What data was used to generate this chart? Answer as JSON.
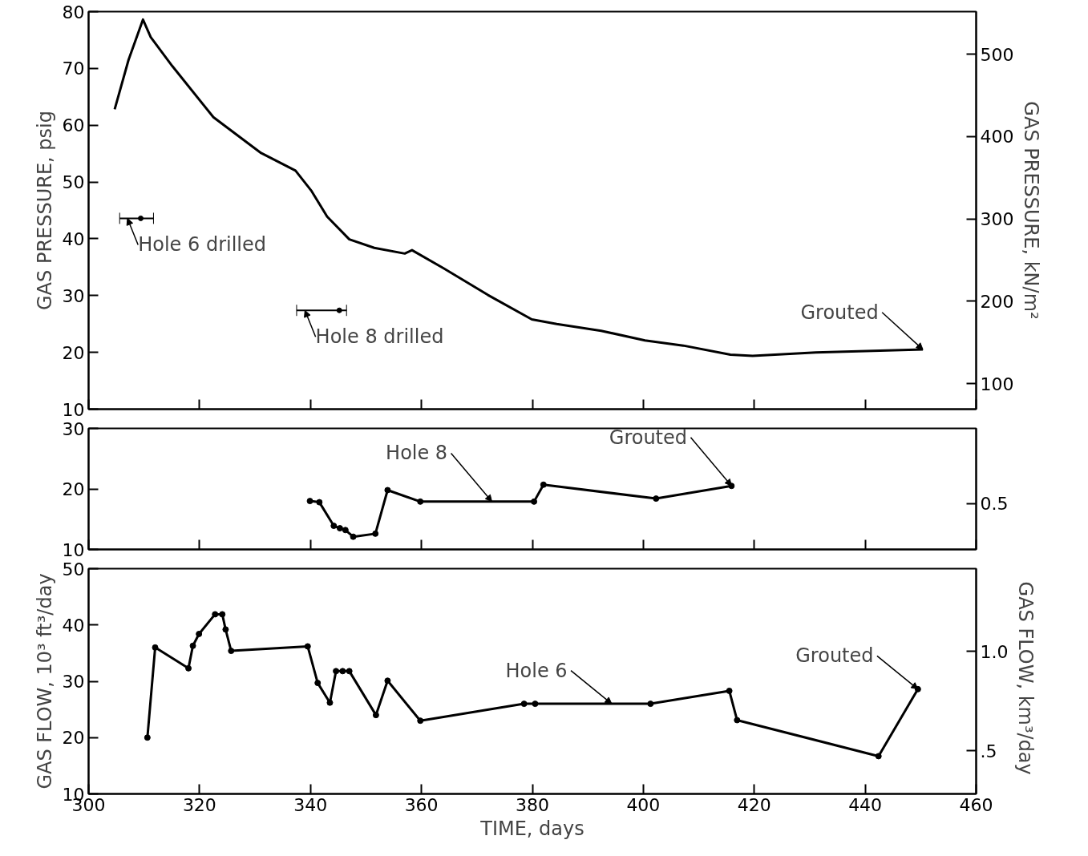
{
  "chart_data": [
    {
      "type": "line",
      "ylabel": "GAS PRESSURE, psig",
      "y2label": "GAS PRESSURE, kN/m²",
      "x": [
        304.7,
        307.2,
        309.8,
        311.2,
        315.1,
        322.5,
        331.1,
        337.3,
        340.2,
        343.0,
        347.0,
        351.5,
        357.0,
        358.3,
        364.0,
        372.0,
        379.9,
        384.4,
        392.4,
        400.3,
        407.2,
        415.7,
        419.7,
        431.1,
        450.4
      ],
      "series": [
        {
          "color": "#000000",
          "values": [
            62.8,
            71.5,
            78.6,
            75.5,
            70.4,
            61.4,
            55.1,
            52.0,
            48.4,
            43.9,
            39.9,
            38.4,
            37.4,
            38.0,
            34.8,
            30.1,
            25.8,
            25.0,
            23.8,
            22.1,
            21.2,
            19.6,
            19.4,
            20.0,
            20.5
          ]
        },
        {
          "type": "scatter",
          "color": "#000000",
          "x": [
            309.4,
            345.2
          ],
          "values": [
            43.6,
            27.4
          ],
          "xerrors": [
            [
              305.6,
              311.7
            ],
            [
              337.5,
              346.5
            ]
          ]
        }
      ],
      "xlim": [
        300,
        460
      ],
      "xticks": [
        {
          "value": 300,
          "label": null
        },
        {
          "value": 320,
          "label": null
        },
        {
          "value": 340,
          "label": null
        },
        {
          "value": 360,
          "label": null
        },
        {
          "value": 380,
          "label": null
        },
        {
          "value": 400,
          "label": null
        },
        {
          "value": 420,
          "label": null
        },
        {
          "value": 440,
          "label": null
        },
        {
          "value": 460,
          "label": null
        }
      ],
      "ylim": [
        10,
        80
      ],
      "yticks": [
        10,
        20,
        30,
        40,
        50,
        60,
        70,
        80
      ],
      "y2lim": [
        68.95,
        551.58
      ],
      "y2ticks": [
        100,
        200,
        300,
        400,
        500
      ],
      "annotations": [
        {
          "text": "Hole 6 drilled",
          "x": 307.0,
          "y": 43.6
        },
        {
          "text": "Hole 8 drilled",
          "x": 339.0,
          "y": 27.4
        },
        {
          "text": "Grouted",
          "x": 450.4,
          "y": 20.5
        }
      ],
      "tick_labels": "y",
      "grid": false,
      "marker": "none",
      "line_style": "solid"
    },
    {
      "type": "line",
      "x": [
        339.9,
        341.6,
        344.2,
        345.3,
        346.3,
        347.7,
        351.7,
        353.9,
        359.8,
        380.3,
        382.0,
        402.3,
        415.9
      ],
      "series": [
        {
          "color": "#000000",
          "values": [
            18.0,
            17.8,
            13.9,
            13.5,
            13.2,
            12.1,
            12.6,
            19.8,
            17.9,
            17.9,
            20.7,
            18.4,
            20.5
          ]
        }
      ],
      "xlim": [
        300,
        460
      ],
      "xticks": [
        {
          "value": 300,
          "label": null
        },
        {
          "value": 320,
          "label": null
        },
        {
          "value": 340,
          "label": null
        },
        {
          "value": 360,
          "label": null
        },
        {
          "value": 380,
          "label": null
        },
        {
          "value": 400,
          "label": null
        },
        {
          "value": 420,
          "label": null
        },
        {
          "value": 440,
          "label": null
        },
        {
          "value": 460,
          "label": null
        }
      ],
      "ylim": [
        10,
        30
      ],
      "yticks": [
        10,
        20,
        30
      ],
      "annotations": [
        {
          "text": "Hole 8",
          "x": 372.7,
          "y": 17.9
        },
        {
          "text": "Grouted",
          "x": 415.9,
          "y": 20.5
        },
        "0.5"
      ],
      "tick_labels": "y",
      "grid": false,
      "marker": "circle",
      "line_style": "solid"
    },
    {
      "type": "line",
      "xlabel": "TIME, days",
      "ylabel": "GAS FLOW, 10³ ft³/day",
      "y2label": "GAS FLOW,  km³/day",
      "x": [
        310.6,
        312.0,
        318.0,
        318.8,
        319.9,
        322.8,
        324.1,
        324.7,
        325.7,
        339.5,
        341.3,
        343.5,
        344.6,
        345.8,
        347.0,
        351.8,
        353.9,
        359.8,
        378.5,
        380.5,
        401.3,
        415.5,
        416.9,
        442.4,
        449.5
      ],
      "series": [
        {
          "color": "#000000",
          "values": [
            20.0,
            36.0,
            32.3,
            36.3,
            38.4,
            41.9,
            41.9,
            39.2,
            35.4,
            36.2,
            29.7,
            26.2,
            31.8,
            31.8,
            31.8,
            24.0,
            30.1,
            23.0,
            26.0,
            26.0,
            26.0,
            28.3,
            23.1,
            16.7,
            28.6
          ]
        }
      ],
      "xlim": [
        300,
        460
      ],
      "xticks": [
        300,
        320,
        340,
        360,
        380,
        400,
        420,
        440,
        460
      ],
      "ylim": [
        10,
        50
      ],
      "yticks": [
        10,
        20,
        30,
        40,
        50
      ],
      "y2lim": [
        0.2832,
        1.4158
      ],
      "y2ticks": [
        {
          "value": 0.5,
          "label": ".5"
        },
        {
          "value": 1.0,
          "label": "1.0"
        }
      ],
      "annotations": [
        {
          "text": "Hole 6",
          "x": 394.3,
          "y": 26.0
        },
        {
          "text": "Grouted",
          "x": 449.5,
          "y": 28.6
        }
      ],
      "grid": false,
      "marker": "circle",
      "line_style": "solid"
    }
  ]
}
